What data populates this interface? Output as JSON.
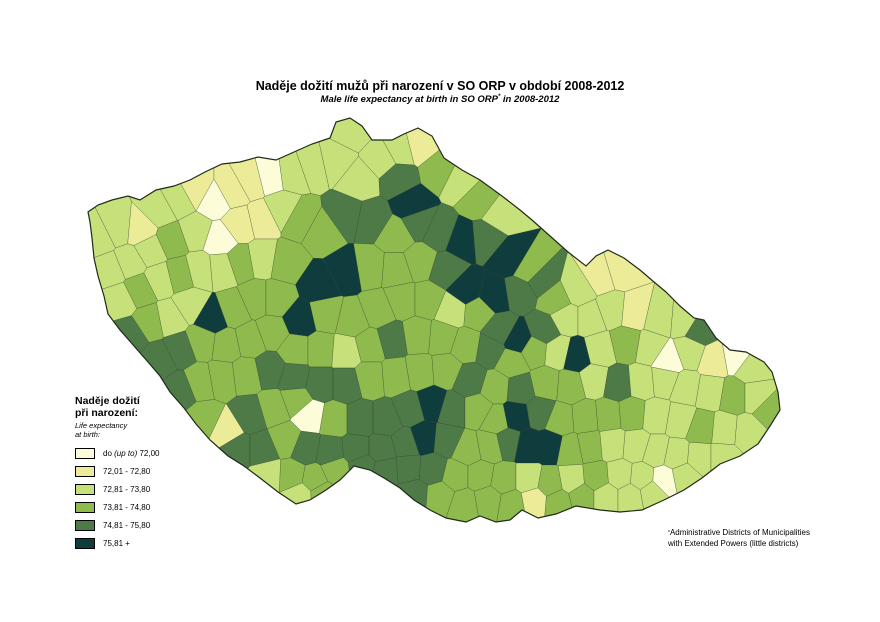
{
  "title": "Naděje dožití mužů při narození v SO ORP v období 2008-2012",
  "subtitle": {
    "text": "Male life expectancy at birth in SO ORP",
    "marker": "*",
    "suffix": " in 2008-2012"
  },
  "legend": {
    "title_line1": "Naděje dožití",
    "title_line2": "při narození:",
    "sub_line1": "Life expectancy",
    "sub_line2": "at birth:",
    "classes": [
      {
        "prefix": "do ",
        "italic": "(up to)",
        "label": " 72,00",
        "color": "#fcfcd8"
      },
      {
        "prefix": "",
        "italic": "",
        "label": "72,01 - 72,80",
        "color": "#ecec98"
      },
      {
        "prefix": "",
        "italic": "",
        "label": "72,81 - 73,80",
        "color": "#c6e07a"
      },
      {
        "prefix": "",
        "italic": "",
        "label": "73,81 - 74,80",
        "color": "#8fbb4e"
      },
      {
        "prefix": "",
        "italic": "",
        "label": "74,81 - 75,80",
        "color": "#4e7a48"
      },
      {
        "prefix": "",
        "italic": "",
        "label": "75,81 +",
        "color": "#0f3c3c"
      }
    ]
  },
  "footnote": {
    "marker": "*",
    "line1": "Administrative Districts of Municipalities",
    "line2": "with Extended Powers (little districts)"
  },
  "map": {
    "border_color": "#2a3a22"
  }
}
